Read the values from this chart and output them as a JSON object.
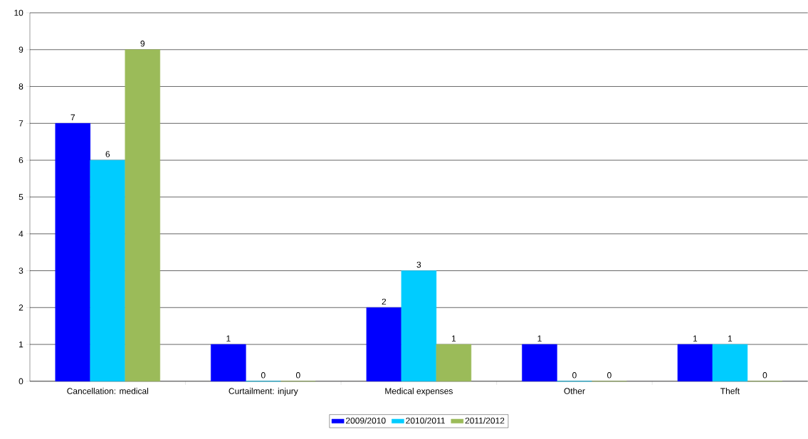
{
  "chart_data": {
    "type": "bar",
    "categories": [
      "Cancellation: medical",
      "Curtailment: injury",
      "Medical expenses",
      "Other",
      "Theft"
    ],
    "series": [
      {
        "name": "2009/2010",
        "color": "#0000ff",
        "values": [
          7,
          1,
          2,
          1,
          1
        ]
      },
      {
        "name": "2010/2011",
        "color": "#00ccff",
        "values": [
          6,
          0,
          3,
          0,
          1
        ]
      },
      {
        "name": "2011/2012",
        "color": "#9bbb59",
        "values": [
          9,
          0,
          1,
          0,
          0
        ]
      }
    ],
    "ylim": [
      0,
      10
    ],
    "yticks": [
      0,
      1,
      2,
      3,
      4,
      5,
      6,
      7,
      8,
      9,
      10
    ],
    "grid": "y",
    "legend": "bottom",
    "data_labels": true
  }
}
